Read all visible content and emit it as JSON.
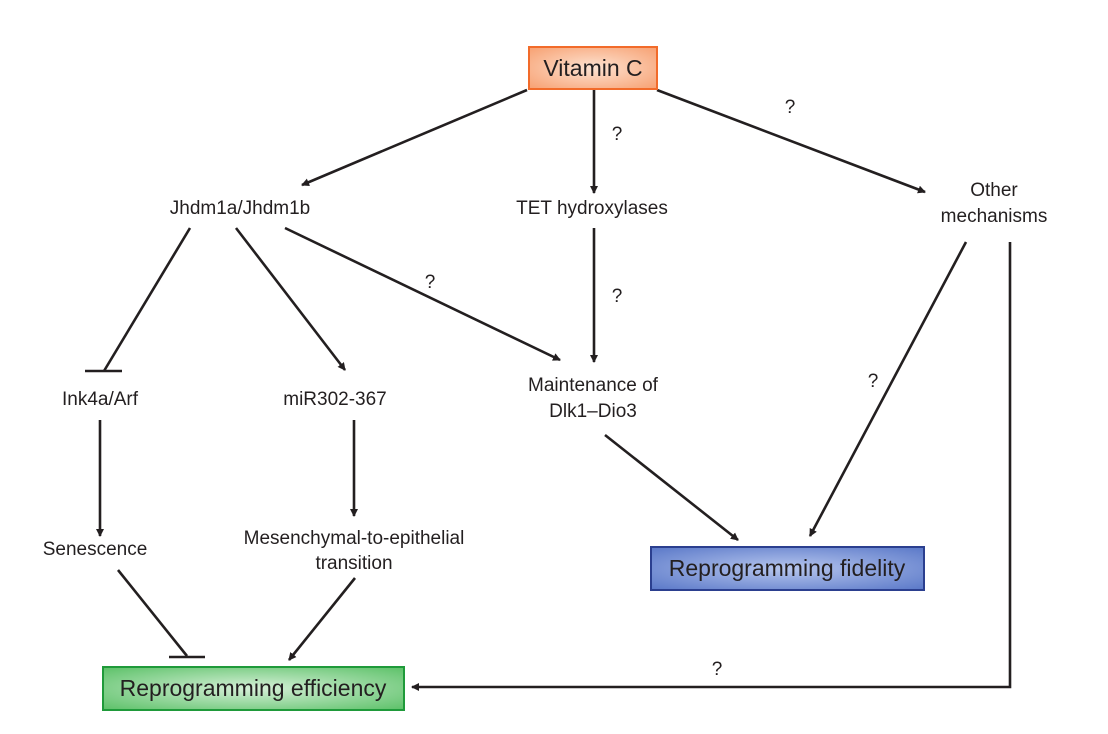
{
  "nodes": {
    "vitamin_c": "Vitamin C",
    "jhdm": "Jhdm1a/Jhdm1b",
    "tet": "TET hydroxylases",
    "other_1": "Other",
    "other_2": "mechanisms",
    "ink4a": "Ink4a/Arf",
    "mir": "miR302-367",
    "maint_1": "Maintenance of",
    "maint_2": "Dlk1–Dio3",
    "senescence": "Senescence",
    "met_1": "Mesenchymal-to-epithelial",
    "met_2": "transition",
    "fidelity": "Reprogramming fidelity",
    "efficiency": "Reprogramming efficiency"
  },
  "question_mark": "?",
  "colors": {
    "vitamin_c_fill": "#f7a071",
    "vitamin_c_border": "#f26b2a",
    "fidelity_fill": "#5a78c8",
    "fidelity_border": "#2b3f8f",
    "efficiency_fill": "#5cc168",
    "efficiency_border": "#1f9a3a"
  },
  "edges": [
    {
      "from": "Vitamin C",
      "to": "Jhdm1a/Jhdm1b",
      "type": "activation"
    },
    {
      "from": "Vitamin C",
      "to": "TET hydroxylases",
      "type": "activation",
      "uncertain": true
    },
    {
      "from": "Vitamin C",
      "to": "Other mechanisms",
      "type": "activation",
      "uncertain": true
    },
    {
      "from": "Jhdm1a/Jhdm1b",
      "to": "Ink4a/Arf",
      "type": "inhibition"
    },
    {
      "from": "Jhdm1a/Jhdm1b",
      "to": "miR302-367",
      "type": "activation"
    },
    {
      "from": "Jhdm1a/Jhdm1b",
      "to": "Maintenance of Dlk1–Dio3",
      "type": "activation",
      "uncertain": true
    },
    {
      "from": "TET hydroxylases",
      "to": "Maintenance of Dlk1–Dio3",
      "type": "activation",
      "uncertain": true
    },
    {
      "from": "Other mechanisms",
      "to": "Reprogramming fidelity",
      "type": "activation",
      "uncertain": true
    },
    {
      "from": "Other mechanisms",
      "to": "Reprogramming efficiency",
      "type": "activation",
      "uncertain": true
    },
    {
      "from": "Ink4a/Arf",
      "to": "Senescence",
      "type": "activation"
    },
    {
      "from": "miR302-367",
      "to": "Mesenchymal-to-epithelial transition",
      "type": "activation"
    },
    {
      "from": "Maintenance of Dlk1–Dio3",
      "to": "Reprogramming fidelity",
      "type": "activation"
    },
    {
      "from": "Senescence",
      "to": "Reprogramming efficiency",
      "type": "inhibition"
    },
    {
      "from": "Mesenchymal-to-epithelial transition",
      "to": "Reprogramming efficiency",
      "type": "activation"
    }
  ]
}
